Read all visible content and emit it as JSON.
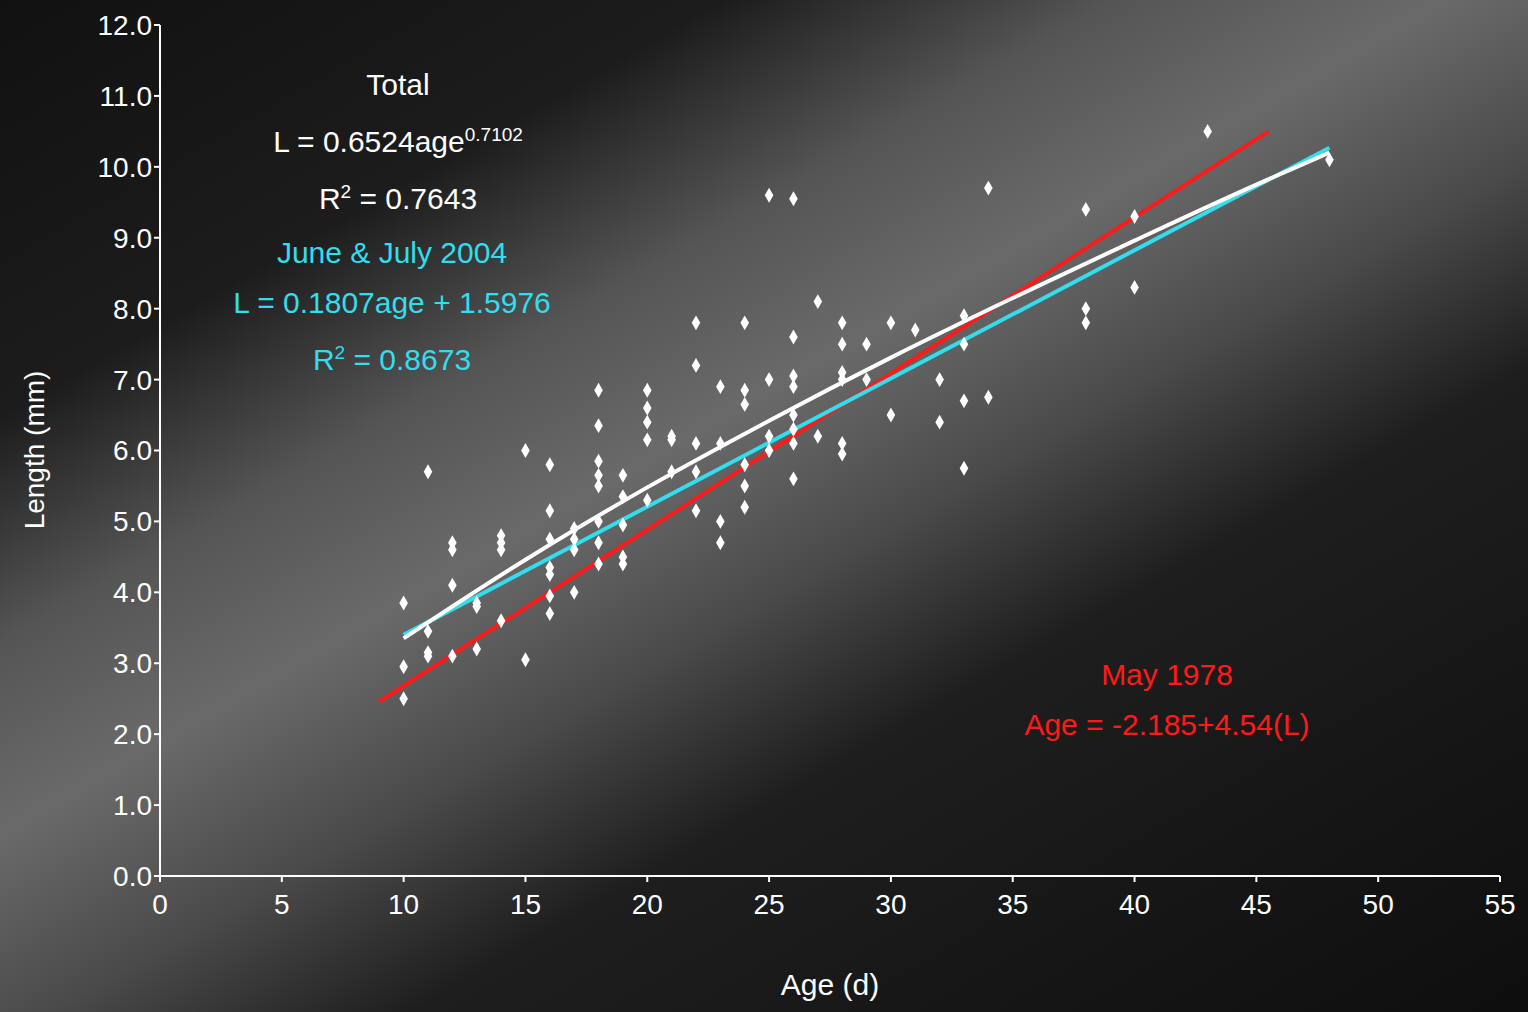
{
  "chart_data": {
    "type": "scatter",
    "x_label": "Age (d)",
    "y_label": "Length (mm)",
    "xlim": [
      0,
      55
    ],
    "xticks": [
      0,
      5,
      10,
      15,
      20,
      25,
      30,
      35,
      40,
      45,
      50,
      55
    ],
    "ylim": [
      0,
      12
    ],
    "yticks": [
      {
        "value": 0,
        "label": "0.0"
      },
      {
        "value": 1,
        "label": "1.0"
      },
      {
        "value": 2,
        "label": "2.0"
      },
      {
        "value": 3,
        "label": "3.0"
      },
      {
        "value": 4,
        "label": "4.0"
      },
      {
        "value": 5,
        "label": "5.0"
      },
      {
        "value": 6,
        "label": "6.0"
      },
      {
        "value": 7,
        "label": "7.0"
      },
      {
        "value": 8,
        "label": "8.0"
      },
      {
        "value": 9,
        "label": "9.0"
      },
      {
        "value": 10,
        "label": "10.0"
      },
      {
        "value": 11,
        "label": "11.0"
      },
      {
        "value": 12,
        "label": "12.0"
      }
    ],
    "grid": false,
    "series": [
      {
        "type": "scatter",
        "color": "#ffffff",
        "marker": "diamond",
        "x": [
          10,
          10,
          10,
          11,
          11,
          11,
          11,
          12,
          12,
          12,
          12,
          13,
          13,
          13,
          14,
          14,
          14,
          14,
          15,
          15,
          16,
          16,
          16,
          16,
          16,
          16,
          16,
          17,
          17,
          17,
          17,
          18,
          18,
          18,
          18,
          18,
          18,
          18,
          18,
          19,
          19,
          19,
          19,
          19,
          20,
          20,
          20,
          20,
          20,
          21,
          21,
          21,
          22,
          22,
          22,
          22,
          22,
          23,
          23,
          23,
          23,
          24,
          24,
          24,
          24,
          24,
          24,
          25,
          25,
          25,
          25,
          26,
          26,
          26,
          26,
          26,
          26,
          26,
          26,
          27,
          27,
          28,
          28,
          28,
          28,
          28,
          28,
          29,
          29,
          30,
          30,
          31,
          32,
          32,
          33,
          33,
          33,
          33,
          34,
          34,
          38,
          38,
          38,
          40,
          40,
          43,
          48
        ],
        "values": [
          3.85,
          2.95,
          2.5,
          5.7,
          3.45,
          3.15,
          3.1,
          4.7,
          4.6,
          4.1,
          3.1,
          3.85,
          3.8,
          3.2,
          4.8,
          4.7,
          4.6,
          3.6,
          6.0,
          3.05,
          5.8,
          5.15,
          4.75,
          4.35,
          4.25,
          3.95,
          3.7,
          4.9,
          4.75,
          4.6,
          4.0,
          6.85,
          6.35,
          5.85,
          5.65,
          5.5,
          5.0,
          4.7,
          4.4,
          5.65,
          5.35,
          4.95,
          4.5,
          4.4,
          6.85,
          6.6,
          6.4,
          6.15,
          5.3,
          6.2,
          6.15,
          5.7,
          7.8,
          7.2,
          6.1,
          5.7,
          5.15,
          6.9,
          6.1,
          5.0,
          4.7,
          7.8,
          6.85,
          6.65,
          5.8,
          5.5,
          5.2,
          9.6,
          7.0,
          6.2,
          6.0,
          9.55,
          7.6,
          7.05,
          6.9,
          6.5,
          6.3,
          6.1,
          5.6,
          8.1,
          6.2,
          7.8,
          7.5,
          7.1,
          7.0,
          6.1,
          5.95,
          7.5,
          7.0,
          7.8,
          6.5,
          7.7,
          7.0,
          6.4,
          7.9,
          7.5,
          6.7,
          5.75,
          9.7,
          6.75,
          9.4,
          8.0,
          7.8,
          9.3,
          8.3,
          10.5,
          10.1
        ]
      },
      {
        "name": "Total",
        "type": "line",
        "color": "#ffffff",
        "marker": "none",
        "line_style": "solid",
        "x": [
          10,
          15,
          20,
          25,
          30,
          35,
          40,
          45,
          48
        ],
        "values": [
          3.35,
          4.46,
          5.48,
          6.42,
          7.31,
          8.15,
          8.96,
          9.75,
          10.2
        ],
        "equation": [
          [
            {
              "text": "L = 0.6524age"
            },
            {
              "text": "0.7102",
              "sup": true
            }
          ],
          [
            {
              "text": "R"
            },
            {
              "text": "2",
              "sup": true
            },
            {
              "text": " = 0.7643"
            }
          ]
        ]
      },
      {
        "name": "June & July 2004",
        "type": "line",
        "color": "#33ddee",
        "marker": "none",
        "line_style": "solid",
        "x": [
          10,
          48
        ],
        "values": [
          3.4,
          10.27
        ],
        "equation": [
          [
            {
              "text": "L = 0.1807age + 1.5976"
            }
          ],
          [
            {
              "text": "R"
            },
            {
              "text": "2",
              "sup": true
            },
            {
              "text": " = 0.8673"
            }
          ]
        ]
      },
      {
        "name": "May 1978",
        "type": "line",
        "color": "#ff1a1a",
        "marker": "none",
        "line_style": "solid",
        "x": [
          9,
          45.5
        ],
        "values": [
          2.46,
          10.5
        ],
        "equation": [
          [
            {
              "text": "Age = -2.185+4.54(L)"
            }
          ]
        ]
      }
    ]
  }
}
